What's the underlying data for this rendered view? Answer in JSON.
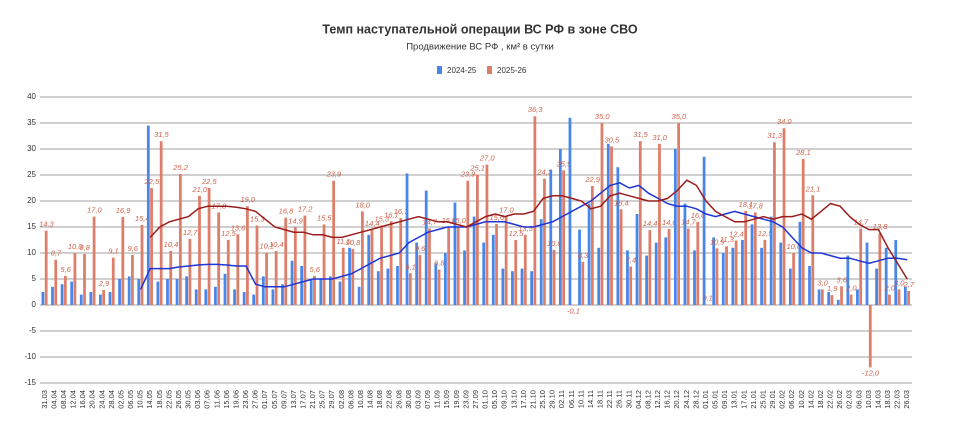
{
  "chart_data": {
    "type": "bar",
    "title": "Темп наступательной операции ВС РФ в зоне СВО",
    "subtitle": "Продвижение ВС РФ , км² в сутки",
    "categories": [
      "31.03",
      "04.04",
      "08.04",
      "12.04",
      "16.04",
      "20.04",
      "24.04",
      "28.04",
      "02.05",
      "06.05",
      "10.05",
      "14.05",
      "18.05",
      "22.05",
      "26.05",
      "30.05",
      "03.06",
      "07.06",
      "11.06",
      "15.06",
      "19.06",
      "23.06",
      "27.06",
      "01.07",
      "05.07",
      "09.07",
      "13.07",
      "17.07",
      "21.07",
      "25.07",
      "29.07",
      "02.08",
      "06.08",
      "10.08",
      "14.08",
      "18.08",
      "22.08",
      "26.08",
      "30.08",
      "03.09",
      "07.09",
      "11.09",
      "15.09",
      "19.09",
      "23.09",
      "27.09",
      "01.10",
      "05.10",
      "09.10",
      "13.10",
      "17.10",
      "21.10",
      "25.10",
      "29.10",
      "02.11",
      "06.11",
      "10.11",
      "14.11",
      "18.11",
      "22.11",
      "26.11",
      "30.11",
      "04.12",
      "08.12",
      "12.12",
      "16.12",
      "20.12",
      "24.12",
      "28.12",
      "01.01",
      "05.01",
      "09.01",
      "13.01",
      "17.01",
      "21.01",
      "25.01",
      "29.01",
      "02.02",
      "06.02",
      "10.02",
      "14.02",
      "18.02",
      "22.02",
      "26.02",
      "02.03",
      "06.03",
      "10.03",
      "14.03",
      "18.03",
      "22.03",
      "26.03"
    ],
    "series": [
      {
        "name": "2024-25",
        "color": "#4a86e8",
        "values": [
          2.5,
          3.5,
          4,
          4.5,
          2,
          2.5,
          2,
          2.5,
          5,
          5.5,
          5,
          34.5,
          4.5,
          5,
          5,
          5.5,
          3,
          3,
          3.5,
          6,
          3,
          2.5,
          2,
          5.5,
          3,
          4,
          8.5,
          7.5,
          5,
          5,
          5.5,
          4.5,
          11,
          3.5,
          13.5,
          6.5,
          7,
          7.5,
          25.3,
          12,
          22,
          8,
          10,
          19.7,
          10.5,
          17,
          12,
          13.5,
          7,
          6.5,
          7,
          6.5,
          16.5,
          26,
          30,
          36,
          14.5,
          19.5,
          11,
          31,
          26.5,
          10.5,
          17.5,
          9.5,
          12,
          13,
          30,
          19.5,
          10.5,
          28.5,
          13,
          10,
          11,
          12.5,
          15.5,
          11,
          17,
          12,
          7,
          16,
          7.5,
          3,
          2.5,
          1,
          9.5,
          3,
          12,
          7,
          11,
          12.5,
          3.5
        ]
      },
      {
        "name": "2025-26",
        "color": "#dd7e6b",
        "values": [
          14.3,
          8.7,
          5.6,
          10.0,
          9.8,
          17.0,
          2.9,
          9.1,
          16.9,
          9.6,
          15.4,
          22.5,
          31.5,
          10.4,
          25.2,
          12.7,
          21.0,
          22.5,
          17.8,
          12.5,
          13.6,
          19.0,
          15.3,
          10.1,
          10.4,
          16.8,
          14.9,
          17.2,
          5.6,
          15.5,
          23.9,
          11.0,
          10.8,
          18.0,
          14.4,
          15.3,
          16.1,
          16.7,
          6.1,
          9.6,
          14.7,
          6.8,
          15.0,
          15.0,
          23.9,
          25.1,
          27.0,
          15.6,
          17.0,
          12.5,
          13.5,
          36.3,
          24.3,
          10.6,
          25.9,
          -0.1,
          8.3,
          22.9,
          35.0,
          30.5,
          18.4,
          7.4,
          31.5,
          14.4,
          31.0,
          14.6,
          35.0,
          14.7,
          16.0,
          0.1,
          10.9,
          11.3,
          12.4,
          18.1,
          17.8,
          12.5,
          31.3,
          34.0,
          10.0,
          28.1,
          21.1,
          3.0,
          1.9,
          3.6,
          2.0,
          14.7,
          -12.0,
          13.8,
          2.0,
          3.0,
          2.7
        ],
        "value_labels": [
          "14,3",
          "8,7",
          "5,6",
          "10,0",
          "9,8",
          "17,0",
          "2,9",
          "9,1",
          "16,9",
          "9,6",
          "15,4",
          "22,5",
          "31,5",
          "10,4",
          "25,2",
          "12,7",
          "21,0",
          "22,5",
          "17,8",
          "12,5",
          "13,6",
          "19,0",
          "15,3",
          "10,1",
          "10,4",
          "16,8",
          "14,9",
          "17,2",
          "5,6",
          "15,5",
          "23,9",
          "11,0",
          "10,8",
          "18,0",
          "14,4",
          "15,3",
          "16,1",
          "16,7",
          "6,1",
          "9,6",
          "14,7",
          "6,8",
          "15,0",
          "15,0",
          "23,9",
          "25,1",
          "27,0",
          "15,6",
          "17,0",
          "12,5",
          "13,5",
          "36,3",
          "24,3",
          "10,6",
          "25,9",
          "-0,1",
          "8,3",
          "22,9",
          "35,0",
          "30,5",
          "18,4",
          "7,4",
          "31,5",
          "14,4",
          "31,0",
          "14,6",
          "35,0",
          "14,7",
          "16,0",
          "0,1",
          "10,9",
          "11,3",
          "12,4",
          "18,1",
          "17,8",
          "12,5",
          "31,3",
          "34,0",
          "10,0",
          "28,1",
          "21,1",
          "3,0",
          "1,9",
          "3,6",
          "2,0",
          "14,7",
          "-12,0",
          "13,8",
          "2,0",
          "3,0",
          "2,7"
        ]
      }
    ],
    "trend_lines": [
      {
        "color": "#1f35d6",
        "values": [
          null,
          null,
          null,
          null,
          null,
          null,
          null,
          null,
          null,
          null,
          3,
          7,
          7,
          7,
          7.3,
          7.5,
          7.7,
          7.8,
          7.8,
          7.7,
          7.5,
          7.5,
          4,
          3.5,
          3.5,
          3.5,
          4,
          4.5,
          5,
          5,
          5,
          5.5,
          6,
          7,
          8,
          9,
          9.5,
          10,
          12,
          13,
          14,
          14.5,
          15,
          15,
          15,
          15.5,
          16,
          16,
          16,
          15.5,
          15,
          15,
          15.5,
          16,
          17,
          18,
          19,
          20,
          21.5,
          23,
          23.5,
          22.5,
          23,
          21.5,
          20.5,
          19.5,
          19,
          19,
          18.5,
          17.5,
          17,
          17.5,
          18,
          17.5,
          17,
          16.5,
          16,
          15,
          13,
          11,
          10,
          10,
          9.5,
          9,
          9,
          8.5,
          8,
          8.5,
          9,
          9,
          8.7
        ]
      },
      {
        "color": "#9b1c1c",
        "values": [
          null,
          null,
          null,
          null,
          null,
          null,
          null,
          null,
          null,
          null,
          null,
          13,
          15,
          16,
          16.5,
          17,
          18.5,
          19,
          19,
          19,
          18.8,
          18.5,
          18,
          16.5,
          15,
          14.5,
          14,
          14,
          13.5,
          13.5,
          13,
          13,
          13.5,
          14,
          14.5,
          15,
          15.5,
          16,
          16.5,
          17,
          16.5,
          16,
          16,
          15.5,
          15,
          16,
          17,
          17.5,
          17,
          17.5,
          17.5,
          18,
          20.5,
          21,
          21,
          20.5,
          20,
          18.5,
          19,
          21,
          21.5,
          21,
          20.5,
          20,
          20,
          20.5,
          22,
          24,
          23,
          20,
          18,
          17,
          16,
          16,
          16.5,
          17,
          16.5,
          17,
          17,
          17.5,
          16.5,
          18,
          19.5,
          19,
          17,
          15.5,
          14.5,
          14.5,
          11,
          8,
          5
        ]
      }
    ],
    "ylim": [
      -15,
      40
    ],
    "yticks": [
      -15,
      -10,
      -5,
      0,
      5,
      10,
      15,
      20,
      25,
      30,
      35,
      40
    ],
    "grid": true,
    "legend": "top"
  }
}
